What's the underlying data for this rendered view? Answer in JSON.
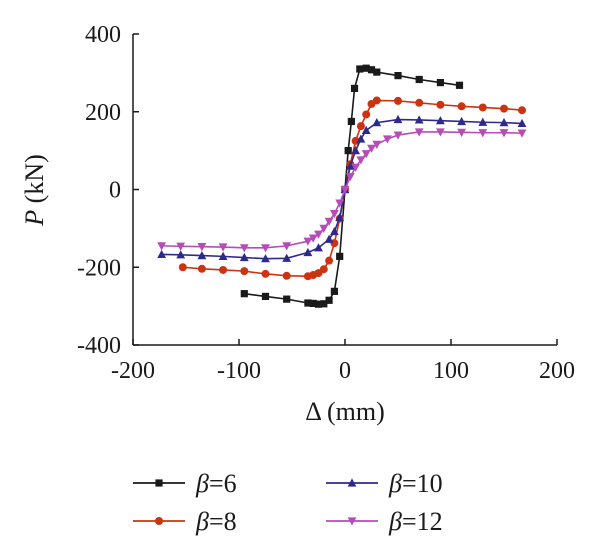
{
  "chart_data": {
    "type": "line",
    "xlabel": "Δ (mm)",
    "ylabel_symbol": "P",
    "ylabel_unit": " (kN)",
    "xlim": [
      -200,
      200
    ],
    "ylim": [
      -400,
      400
    ],
    "xticks": [
      "-200",
      "-100",
      "0",
      "100",
      "200"
    ],
    "yticks": [
      "400",
      "200",
      "0",
      "-200",
      "-400"
    ],
    "xtick_values": [
      -200,
      -100,
      0,
      100,
      200
    ],
    "ytick_values": [
      400,
      200,
      0,
      -200,
      -400
    ],
    "grid": false,
    "legend_position": "bottom",
    "series": [
      {
        "name_symbol": "β",
        "name_value": "=6",
        "color": "#1a1a1a",
        "marker": "square",
        "x": [
          -95,
          -75,
          -55,
          -35,
          -30,
          -25,
          -20,
          -15,
          -10,
          -5,
          0,
          3,
          6,
          9,
          14,
          20,
          25,
          30,
          50,
          70,
          90,
          108
        ],
        "y": [
          -268,
          -275,
          -282,
          -292,
          -293,
          -295,
          -294,
          -285,
          -262,
          -172,
          0,
          100,
          175,
          260,
          310,
          312,
          308,
          302,
          293,
          283,
          275,
          268
        ]
      },
      {
        "name_symbol": "β",
        "name_value": "=8",
        "color": "#cc3311",
        "marker": "circle",
        "x": [
          -153,
          -135,
          -115,
          -95,
          -75,
          -55,
          -35,
          -30,
          -25,
          -20,
          -15,
          -10,
          -5,
          0,
          5,
          10,
          15,
          20,
          25,
          30,
          50,
          70,
          90,
          110,
          130,
          150,
          167
        ],
        "y": [
          -200,
          -204,
          -207,
          -210,
          -217,
          -222,
          -223,
          -220,
          -215,
          -205,
          -183,
          -138,
          -75,
          0,
          65,
          125,
          163,
          193,
          220,
          229,
          228,
          223,
          218,
          214,
          211,
          208,
          204
        ]
      },
      {
        "name_symbol": "β",
        "name_value": "=10",
        "color": "#2e2a8c",
        "marker": "triangle-up",
        "x": [
          -173,
          -155,
          -135,
          -115,
          -95,
          -75,
          -55,
          -35,
          -25,
          -15,
          -10,
          -5,
          0,
          5,
          10,
          15,
          20,
          30,
          50,
          70,
          90,
          110,
          130,
          150,
          167
        ],
        "y": [
          -167,
          -168,
          -170,
          -172,
          -175,
          -178,
          -177,
          -162,
          -150,
          -128,
          -108,
          -72,
          0,
          60,
          100,
          130,
          152,
          172,
          180,
          179,
          177,
          175,
          173,
          172,
          170
        ]
      },
      {
        "name_symbol": "β",
        "name_value": "=12",
        "color": "#b54cb8",
        "marker": "triangle-down",
        "x": [
          -173,
          -155,
          -135,
          -115,
          -95,
          -75,
          -55,
          -35,
          -30,
          -25,
          -20,
          -15,
          -10,
          -5,
          0,
          5,
          10,
          15,
          20,
          25,
          30,
          40,
          50,
          70,
          90,
          110,
          130,
          150,
          167
        ],
        "y": [
          -145,
          -146,
          -147,
          -148,
          -150,
          -150,
          -145,
          -133,
          -125,
          -115,
          -100,
          -82,
          -62,
          -35,
          0,
          33,
          57,
          76,
          92,
          106,
          116,
          130,
          140,
          148,
          148,
          147,
          146,
          146,
          145
        ]
      }
    ]
  }
}
